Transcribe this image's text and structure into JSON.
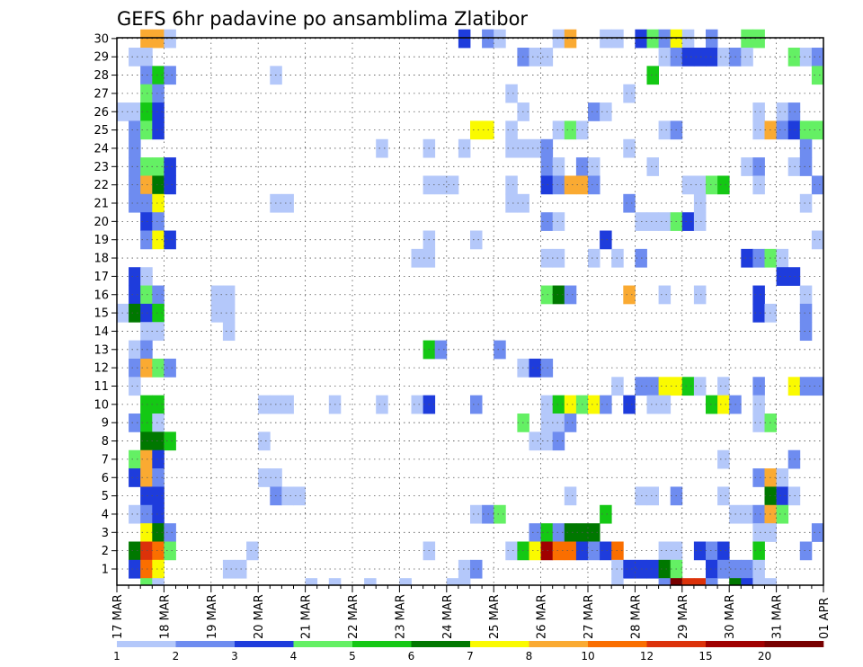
{
  "chart_data": {
    "type": "heatmap",
    "title": "GEFS 6hr padavine po ansamblima Zlatibor",
    "xlabel": "",
    "ylabel": "",
    "y_ticks": [
      "1",
      "2",
      "3",
      "4",
      "5",
      "6",
      "7",
      "8",
      "9",
      "10",
      "11",
      "12",
      "13",
      "14",
      "15",
      "16",
      "17",
      "18",
      "19",
      "20",
      "21",
      "22",
      "23",
      "24",
      "25",
      "26",
      "27",
      "28",
      "29",
      "30"
    ],
    "x_ticks": [
      "17 MAR",
      "18 MAR",
      "19 MAR",
      "20 MAR",
      "21 MAR",
      "22 MAR",
      "23 MAR",
      "24 MAR",
      "25 MAR",
      "26 MAR",
      "27 MAR",
      "28 MAR",
      "29 MAR",
      "30 MAR",
      "31 MAR",
      "01 APR"
    ],
    "columns": 60,
    "members": 30,
    "legend_labels": [
      "1",
      "2",
      "3",
      "4",
      "5",
      "6",
      "7",
      "8",
      "10",
      "12",
      "15",
      "20"
    ],
    "colors": [
      "#b4c8fa",
      "#6e8cf0",
      "#1e3cdc",
      "#64f064",
      "#14c814",
      "#007800",
      "#fafa00",
      "#faaa32",
      "#fa6e00",
      "#dc320a",
      "#a00000",
      "#780000"
    ],
    "notes": "cells: [member, column index (0 = 17 MAR 00Z, 6-hourly), color class 0..11]",
    "cells": [
      [
        30,
        2,
        7
      ],
      [
        30,
        3,
        7
      ],
      [
        30,
        4,
        0
      ],
      [
        30,
        29,
        2
      ],
      [
        30,
        31,
        1
      ],
      [
        30,
        32,
        0
      ],
      [
        30,
        37,
        0
      ],
      [
        30,
        38,
        7
      ],
      [
        30,
        41,
        0
      ],
      [
        30,
        42,
        0
      ],
      [
        30,
        44,
        2
      ],
      [
        30,
        45,
        3
      ],
      [
        30,
        46,
        1
      ],
      [
        30,
        47,
        6
      ],
      [
        30,
        48,
        0
      ],
      [
        30,
        50,
        1
      ],
      [
        30,
        53,
        3
      ],
      [
        30,
        54,
        3
      ],
      [
        29,
        1,
        0
      ],
      [
        29,
        2,
        0
      ],
      [
        29,
        34,
        1
      ],
      [
        29,
        35,
        0
      ],
      [
        29,
        36,
        0
      ],
      [
        29,
        46,
        0
      ],
      [
        29,
        47,
        1
      ],
      [
        29,
        48,
        2
      ],
      [
        29,
        49,
        2
      ],
      [
        29,
        50,
        2
      ],
      [
        29,
        51,
        0
      ],
      [
        29,
        52,
        1
      ],
      [
        29,
        53,
        0
      ],
      [
        29,
        57,
        3
      ],
      [
        29,
        58,
        0
      ],
      [
        29,
        59,
        1
      ],
      [
        28,
        2,
        1
      ],
      [
        28,
        3,
        4
      ],
      [
        28,
        4,
        1
      ],
      [
        28,
        13,
        0
      ],
      [
        28,
        45,
        4
      ],
      [
        28,
        59,
        3
      ],
      [
        27,
        2,
        3
      ],
      [
        27,
        3,
        1
      ],
      [
        27,
        33,
        0
      ],
      [
        27,
        43,
        0
      ],
      [
        26,
        0,
        0
      ],
      [
        26,
        1,
        0
      ],
      [
        26,
        2,
        4
      ],
      [
        26,
        3,
        2
      ],
      [
        26,
        34,
        0
      ],
      [
        26,
        40,
        1
      ],
      [
        26,
        41,
        0
      ],
      [
        26,
        54,
        0
      ],
      [
        26,
        56,
        0
      ],
      [
        26,
        57,
        1
      ],
      [
        25,
        1,
        1
      ],
      [
        25,
        2,
        3
      ],
      [
        25,
        3,
        2
      ],
      [
        25,
        30,
        6
      ],
      [
        25,
        31,
        6
      ],
      [
        25,
        33,
        0
      ],
      [
        25,
        37,
        0
      ],
      [
        25,
        38,
        3
      ],
      [
        25,
        39,
        0
      ],
      [
        25,
        46,
        0
      ],
      [
        25,
        47,
        1
      ],
      [
        25,
        54,
        0
      ],
      [
        25,
        55,
        7
      ],
      [
        25,
        56,
        1
      ],
      [
        25,
        57,
        2
      ],
      [
        25,
        58,
        3
      ],
      [
        25,
        59,
        3
      ],
      [
        24,
        1,
        1
      ],
      [
        24,
        22,
        0
      ],
      [
        24,
        26,
        0
      ],
      [
        24,
        29,
        0
      ],
      [
        24,
        33,
        0
      ],
      [
        24,
        34,
        0
      ],
      [
        24,
        35,
        0
      ],
      [
        24,
        36,
        1
      ],
      [
        24,
        43,
        0
      ],
      [
        24,
        58,
        1
      ],
      [
        23,
        1,
        1
      ],
      [
        23,
        2,
        3
      ],
      [
        23,
        3,
        3
      ],
      [
        23,
        4,
        2
      ],
      [
        23,
        36,
        1
      ],
      [
        23,
        37,
        0
      ],
      [
        23,
        39,
        1
      ],
      [
        23,
        40,
        0
      ],
      [
        23,
        45,
        0
      ],
      [
        23,
        53,
        0
      ],
      [
        23,
        54,
        1
      ],
      [
        23,
        57,
        0
      ],
      [
        23,
        58,
        1
      ],
      [
        22,
        1,
        1
      ],
      [
        22,
        2,
        7
      ],
      [
        22,
        3,
        5
      ],
      [
        22,
        4,
        2
      ],
      [
        22,
        26,
        0
      ],
      [
        22,
        27,
        0
      ],
      [
        22,
        28,
        0
      ],
      [
        22,
        33,
        0
      ],
      [
        22,
        36,
        2
      ],
      [
        22,
        37,
        1
      ],
      [
        22,
        38,
        7
      ],
      [
        22,
        39,
        7
      ],
      [
        22,
        40,
        1
      ],
      [
        22,
        48,
        0
      ],
      [
        22,
        49,
        0
      ],
      [
        22,
        50,
        3
      ],
      [
        22,
        51,
        4
      ],
      [
        22,
        54,
        0
      ],
      [
        22,
        59,
        1
      ],
      [
        21,
        1,
        1
      ],
      [
        21,
        2,
        1
      ],
      [
        21,
        3,
        6
      ],
      [
        21,
        13,
        0
      ],
      [
        21,
        14,
        0
      ],
      [
        21,
        33,
        0
      ],
      [
        21,
        34,
        0
      ],
      [
        21,
        43,
        1
      ],
      [
        21,
        49,
        0
      ],
      [
        21,
        58,
        0
      ],
      [
        20,
        2,
        2
      ],
      [
        20,
        3,
        1
      ],
      [
        20,
        36,
        1
      ],
      [
        20,
        37,
        0
      ],
      [
        20,
        44,
        0
      ],
      [
        20,
        45,
        0
      ],
      [
        20,
        46,
        0
      ],
      [
        20,
        47,
        3
      ],
      [
        20,
        48,
        2
      ],
      [
        20,
        49,
        0
      ],
      [
        19,
        2,
        1
      ],
      [
        19,
        3,
        6
      ],
      [
        19,
        4,
        2
      ],
      [
        19,
        26,
        0
      ],
      [
        19,
        30,
        0
      ],
      [
        19,
        41,
        2
      ],
      [
        19,
        59,
        0
      ],
      [
        18,
        25,
        0
      ],
      [
        18,
        26,
        0
      ],
      [
        18,
        36,
        0
      ],
      [
        18,
        37,
        0
      ],
      [
        18,
        40,
        0
      ],
      [
        18,
        42,
        0
      ],
      [
        18,
        44,
        1
      ],
      [
        18,
        53,
        2
      ],
      [
        18,
        54,
        1
      ],
      [
        18,
        55,
        3
      ],
      [
        18,
        56,
        0
      ],
      [
        17,
        1,
        2
      ],
      [
        17,
        2,
        0
      ],
      [
        17,
        56,
        2
      ],
      [
        17,
        57,
        2
      ],
      [
        16,
        1,
        2
      ],
      [
        16,
        2,
        3
      ],
      [
        16,
        3,
        1
      ],
      [
        16,
        8,
        0
      ],
      [
        16,
        9,
        0
      ],
      [
        16,
        36,
        3
      ],
      [
        16,
        37,
        5
      ],
      [
        16,
        38,
        1
      ],
      [
        16,
        43,
        7
      ],
      [
        16,
        46,
        0
      ],
      [
        16,
        49,
        0
      ],
      [
        16,
        54,
        2
      ],
      [
        16,
        58,
        0
      ],
      [
        15,
        0,
        0
      ],
      [
        15,
        1,
        5
      ],
      [
        15,
        2,
        2
      ],
      [
        15,
        3,
        4
      ],
      [
        15,
        8,
        0
      ],
      [
        15,
        9,
        0
      ],
      [
        15,
        54,
        2
      ],
      [
        15,
        55,
        0
      ],
      [
        15,
        58,
        1
      ],
      [
        14,
        2,
        0
      ],
      [
        14,
        3,
        0
      ],
      [
        14,
        9,
        0
      ],
      [
        14,
        58,
        1
      ],
      [
        13,
        1,
        0
      ],
      [
        13,
        2,
        1
      ],
      [
        13,
        26,
        4
      ],
      [
        13,
        27,
        1
      ],
      [
        13,
        32,
        1
      ],
      [
        12,
        1,
        1
      ],
      [
        12,
        2,
        7
      ],
      [
        12,
        3,
        3
      ],
      [
        12,
        4,
        1
      ],
      [
        12,
        34,
        0
      ],
      [
        12,
        35,
        2
      ],
      [
        12,
        36,
        1
      ],
      [
        11,
        1,
        0
      ],
      [
        11,
        42,
        0
      ],
      [
        11,
        44,
        1
      ],
      [
        11,
        45,
        1
      ],
      [
        11,
        46,
        6
      ],
      [
        11,
        47,
        6
      ],
      [
        11,
        48,
        4
      ],
      [
        11,
        49,
        0
      ],
      [
        11,
        51,
        0
      ],
      [
        11,
        54,
        1
      ],
      [
        11,
        57,
        6
      ],
      [
        11,
        58,
        1
      ],
      [
        11,
        59,
        1
      ],
      [
        10,
        2,
        4
      ],
      [
        10,
        3,
        4
      ],
      [
        10,
        12,
        0
      ],
      [
        10,
        13,
        0
      ],
      [
        10,
        14,
        0
      ],
      [
        10,
        18,
        0
      ],
      [
        10,
        22,
        0
      ],
      [
        10,
        25,
        0
      ],
      [
        10,
        26,
        2
      ],
      [
        10,
        30,
        1
      ],
      [
        10,
        36,
        0
      ],
      [
        10,
        37,
        4
      ],
      [
        10,
        38,
        6
      ],
      [
        10,
        39,
        3
      ],
      [
        10,
        40,
        6
      ],
      [
        10,
        41,
        1
      ],
      [
        10,
        43,
        2
      ],
      [
        10,
        45,
        0
      ],
      [
        10,
        46,
        0
      ],
      [
        10,
        50,
        4
      ],
      [
        10,
        51,
        6
      ],
      [
        10,
        52,
        1
      ],
      [
        10,
        54,
        0
      ],
      [
        9,
        1,
        1
      ],
      [
        9,
        2,
        4
      ],
      [
        9,
        3,
        0
      ],
      [
        9,
        34,
        3
      ],
      [
        9,
        36,
        0
      ],
      [
        9,
        37,
        0
      ],
      [
        9,
        38,
        1
      ],
      [
        9,
        54,
        0
      ],
      [
        9,
        55,
        3
      ],
      [
        8,
        2,
        5
      ],
      [
        8,
        3,
        5
      ],
      [
        8,
        4,
        4
      ],
      [
        8,
        12,
        0
      ],
      [
        8,
        35,
        0
      ],
      [
        8,
        36,
        0
      ],
      [
        8,
        37,
        1
      ],
      [
        7,
        1,
        3
      ],
      [
        7,
        2,
        7
      ],
      [
        7,
        3,
        2
      ],
      [
        7,
        51,
        0
      ],
      [
        7,
        57,
        1
      ],
      [
        6,
        1,
        2
      ],
      [
        6,
        2,
        7
      ],
      [
        6,
        3,
        1
      ],
      [
        6,
        12,
        0
      ],
      [
        6,
        13,
        0
      ],
      [
        6,
        54,
        1
      ],
      [
        6,
        55,
        7
      ],
      [
        6,
        56,
        0
      ],
      [
        5,
        2,
        2
      ],
      [
        5,
        3,
        2
      ],
      [
        5,
        13,
        1
      ],
      [
        5,
        14,
        0
      ],
      [
        5,
        15,
        0
      ],
      [
        5,
        38,
        0
      ],
      [
        5,
        44,
        0
      ],
      [
        5,
        45,
        0
      ],
      [
        5,
        47,
        1
      ],
      [
        5,
        51,
        0
      ],
      [
        5,
        55,
        5
      ],
      [
        5,
        56,
        2
      ],
      [
        5,
        57,
        0
      ],
      [
        4,
        1,
        0
      ],
      [
        4,
        2,
        1
      ],
      [
        4,
        3,
        2
      ],
      [
        4,
        30,
        0
      ],
      [
        4,
        31,
        1
      ],
      [
        4,
        32,
        3
      ],
      [
        4,
        41,
        4
      ],
      [
        4,
        52,
        0
      ],
      [
        4,
        53,
        0
      ],
      [
        4,
        54,
        1
      ],
      [
        4,
        55,
        7
      ],
      [
        4,
        56,
        3
      ],
      [
        3,
        2,
        6
      ],
      [
        3,
        3,
        5
      ],
      [
        3,
        4,
        1
      ],
      [
        3,
        35,
        1
      ],
      [
        3,
        36,
        4
      ],
      [
        3,
        37,
        1
      ],
      [
        3,
        38,
        5
      ],
      [
        3,
        39,
        5
      ],
      [
        3,
        40,
        5
      ],
      [
        3,
        54,
        0
      ],
      [
        3,
        55,
        0
      ],
      [
        3,
        59,
        1
      ],
      [
        2,
        1,
        5
      ],
      [
        2,
        2,
        9
      ],
      [
        2,
        3,
        8
      ],
      [
        2,
        4,
        3
      ],
      [
        2,
        11,
        0
      ],
      [
        2,
        26,
        0
      ],
      [
        2,
        33,
        0
      ],
      [
        2,
        34,
        4
      ],
      [
        2,
        35,
        6
      ],
      [
        2,
        36,
        10
      ],
      [
        2,
        37,
        8
      ],
      [
        2,
        38,
        8
      ],
      [
        2,
        39,
        2
      ],
      [
        2,
        40,
        1
      ],
      [
        2,
        41,
        2
      ],
      [
        2,
        42,
        8
      ],
      [
        2,
        46,
        0
      ],
      [
        2,
        47,
        0
      ],
      [
        2,
        49,
        2
      ],
      [
        2,
        50,
        1
      ],
      [
        2,
        51,
        2
      ],
      [
        2,
        54,
        4
      ],
      [
        2,
        58,
        1
      ],
      [
        1,
        1,
        2
      ],
      [
        1,
        2,
        8
      ],
      [
        1,
        3,
        6
      ],
      [
        1,
        9,
        0
      ],
      [
        1,
        10,
        0
      ],
      [
        1,
        29,
        0
      ],
      [
        1,
        30,
        1
      ],
      [
        1,
        42,
        0
      ],
      [
        1,
        43,
        2
      ],
      [
        1,
        44,
        2
      ],
      [
        1,
        45,
        2
      ],
      [
        1,
        46,
        5
      ],
      [
        1,
        47,
        3
      ],
      [
        1,
        50,
        2
      ],
      [
        1,
        51,
        1
      ],
      [
        1,
        52,
        1
      ],
      [
        1,
        53,
        1
      ],
      [
        1,
        54,
        0
      ]
    ],
    "bottom_strip": [
      [
        2,
        3
      ],
      [
        3,
        0
      ],
      [
        16,
        0
      ],
      [
        18,
        0
      ],
      [
        21,
        0
      ],
      [
        24,
        0
      ],
      [
        28,
        0
      ],
      [
        29,
        0
      ],
      [
        42,
        0
      ],
      [
        46,
        1
      ],
      [
        47,
        11
      ],
      [
        48,
        9
      ],
      [
        49,
        9
      ],
      [
        50,
        1
      ],
      [
        52,
        5
      ],
      [
        53,
        2
      ],
      [
        54,
        0
      ],
      [
        55,
        0
      ]
    ]
  }
}
